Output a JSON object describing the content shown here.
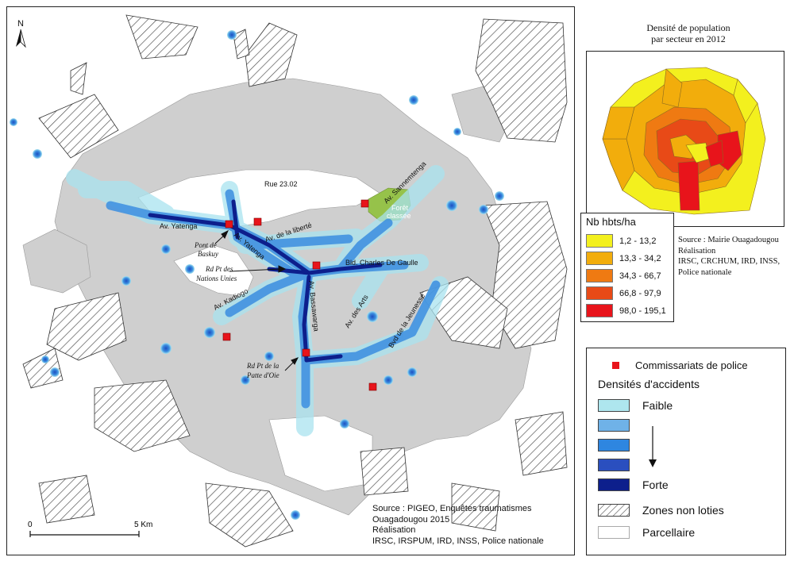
{
  "map": {
    "north": "N",
    "scale": {
      "zero": "0",
      "end": "5 Km"
    },
    "source_lines": [
      "Source : PIGEO, Enquêtes traumatismes",
      "Ouagadougou 2015",
      "Réalisation",
      "IRSC, IRSPUM, IRD, INSS, Police nationale"
    ],
    "labels": {
      "yatenga": "Av. Yatenga",
      "yatenga2": "Av. Yatenga",
      "liberte": "Av. de la liberté",
      "rue": "Rue 23.02",
      "sannem": "Av. Sannemtenga",
      "foret1": "Forêt",
      "foret2": "classée",
      "pont1": "Pont de",
      "pont2": "Baskuy",
      "rd1": "Rd Pt des",
      "rd2": "Nations Unies",
      "cdg": "Bld. Charles De Gaulle",
      "kadiogo": "Av. Kadiogo",
      "bassawarga": "Av. Bassawarga",
      "arts": "Av. des Arts",
      "jeunesse": "Bvd de la Jeunesse",
      "patte1": "Rd Pt de la",
      "patte2": "Patte d'Oie"
    }
  },
  "inset": {
    "title_line1": "Densité de population",
    "title_line2": "par secteur en 2012",
    "legend_title": "Nb hbts/ha",
    "classes": [
      {
        "label": "1,2 - 13,2",
        "color": "#f3f01e"
      },
      {
        "label": "13,3 - 34,2",
        "color": "#f2ad0c"
      },
      {
        "label": "34,3 - 66,7",
        "color": "#ef7a12"
      },
      {
        "label": "66,8 - 97,9",
        "color": "#e84a17"
      },
      {
        "label": "98,0 - 195,1",
        "color": "#e8141b"
      }
    ],
    "source_lines": [
      "Source : Mairie Ouagadougou",
      "Réalisation",
      "IRSC, CRCHUM, IRD, INSS,",
      "Police nationale"
    ]
  },
  "legend": {
    "police": "Commissariats de police",
    "accidents_title": "Densités d'accidents",
    "faible": "Faible",
    "forte": "Forte",
    "zones": "Zones non loties",
    "parcellaire": "Parcellaire",
    "colors": {
      "police": "#e8141b",
      "c1": "#aee6ee",
      "c2": "#6fb2e8",
      "c3": "#2e86e0",
      "c4": "#2a4fbf",
      "c5": "#0d1f8c"
    }
  }
}
